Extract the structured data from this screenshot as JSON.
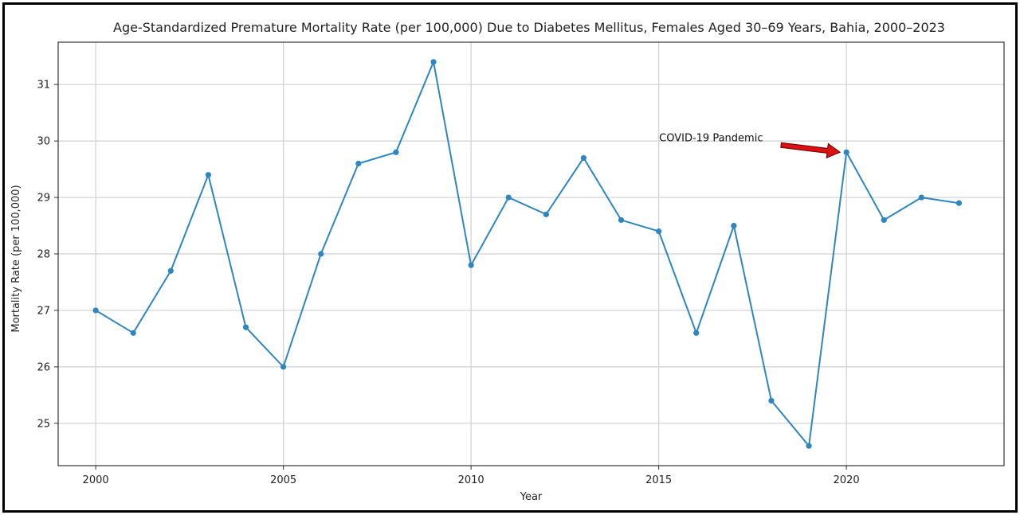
{
  "chart_data": {
    "type": "line",
    "title": "Age-Standardized Premature Mortality Rate (per 100,000) Due to Diabetes Mellitus, Females Aged 30–69 Years, Bahia, 2000–2023",
    "xlabel": "Year",
    "ylabel": "Mortality Rate (per 100,000)",
    "x": [
      2000,
      2001,
      2002,
      2003,
      2004,
      2005,
      2006,
      2007,
      2008,
      2009,
      2010,
      2011,
      2012,
      2013,
      2014,
      2015,
      2016,
      2017,
      2018,
      2019,
      2020,
      2021,
      2022,
      2023
    ],
    "values": [
      27.0,
      26.6,
      27.7,
      29.4,
      26.7,
      26.0,
      28.0,
      29.6,
      29.8,
      31.4,
      27.8,
      29.0,
      28.7,
      29.7,
      28.6,
      28.4,
      26.6,
      28.5,
      25.4,
      24.6,
      29.8,
      28.6,
      29.0,
      28.9
    ],
    "xlim": [
      1999,
      2024.2
    ],
    "ylim": [
      24.25,
      31.75
    ],
    "xticks": [
      "2000",
      "2005",
      "2010",
      "2015",
      "2020"
    ],
    "yticks": [
      "25",
      "26",
      "27",
      "28",
      "29",
      "30",
      "31"
    ],
    "grid": true,
    "line_color": "#2e86c1",
    "annotation": {
      "text": "COVID-19 Pandemic",
      "x": 2020,
      "y": 29.8,
      "arrow_color": "#dd1111"
    }
  }
}
